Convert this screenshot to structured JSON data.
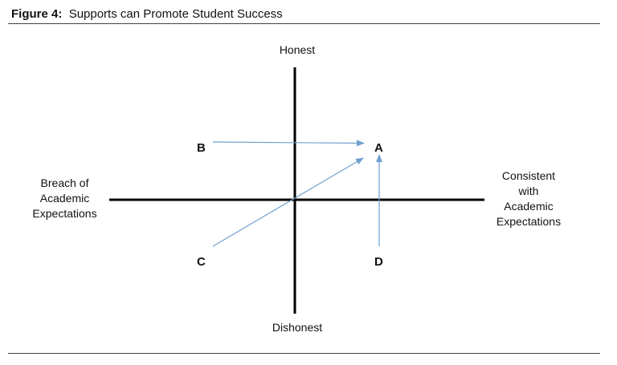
{
  "figure": {
    "label": "Figure 4:",
    "title": "Supports can Promote Student Success"
  },
  "axes": {
    "top": "Honest",
    "bottom": "Dishonest",
    "left": [
      "Breach of",
      "Academic",
      "Expectations"
    ],
    "right": [
      "Consistent",
      "with",
      "Academic",
      "Expectations"
    ]
  },
  "points": {
    "a": "A",
    "b": "B",
    "c": "C",
    "d": "D"
  },
  "colors": {
    "axis": "#000000",
    "arrow": "#6fa0d0",
    "rule": "#444444"
  },
  "arrows": [
    {
      "from": "B",
      "to": "A"
    },
    {
      "from": "C",
      "to": "A"
    },
    {
      "from": "D",
      "to": "A"
    }
  ]
}
